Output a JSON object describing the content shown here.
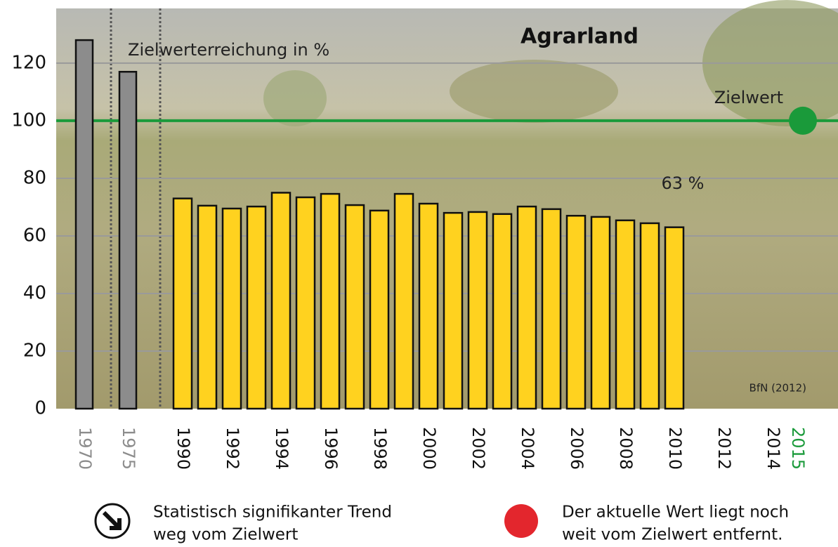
{
  "chart_data": {
    "type": "bar",
    "title": "Agrarland",
    "subtitle": "Zielwerterreichung in %",
    "categories": [
      "1970",
      "1975",
      "1990",
      null,
      "1992",
      null,
      "1994",
      null,
      "1996",
      null,
      "1998",
      null,
      "2000",
      null,
      "2002",
      null,
      "2004",
      null,
      "2006",
      null,
      "2008",
      null,
      "2010",
      null,
      "2012",
      null,
      "2014",
      "2015"
    ],
    "values": [
      128,
      117,
      73,
      70.5,
      69.5,
      70.2,
      75,
      73.4,
      74.6,
      70.7,
      68.8,
      74.6,
      71.2,
      68,
      68.3,
      67.6,
      70.2,
      69.3,
      67,
      66.6,
      65.4,
      64.4,
      63,
      null,
      null,
      null,
      null,
      null
    ],
    "bar_colors": [
      "#8c8c8c",
      "#8c8c8c",
      "#ffd21f",
      "#ffd21f",
      "#ffd21f",
      "#ffd21f",
      "#ffd21f",
      "#ffd21f",
      "#ffd21f",
      "#ffd21f",
      "#ffd21f",
      "#ffd21f",
      "#ffd21f",
      "#ffd21f",
      "#ffd21f",
      "#ffd21f",
      "#ffd21f",
      "#ffd21f",
      "#ffd21f",
      "#ffd21f",
      "#ffd21f",
      "#ffd21f",
      "#ffd21f",
      null,
      null,
      null,
      null,
      null
    ],
    "label_colors": [
      "#8c8c8c",
      "#8c8c8c",
      "#111111",
      null,
      "#111111",
      null,
      "#111111",
      null,
      "#111111",
      null,
      "#111111",
      null,
      "#111111",
      null,
      "#111111",
      null,
      "#111111",
      null,
      "#111111",
      null,
      "#111111",
      null,
      "#111111",
      null,
      "#111111",
      null,
      "#111111",
      "#1a9a3a"
    ],
    "ylim": [
      0,
      139
    ],
    "yticks": [
      0,
      20,
      40,
      60,
      80,
      100,
      120
    ],
    "grid": true,
    "current_label": "63 %",
    "target": {
      "value": 100,
      "label": "Zielwert",
      "color": "#1a9a3a"
    },
    "source": "BfN (2012)",
    "notes": [
      {
        "lines": [
          "Statistisch signifikanter Trend",
          "weg vom Zielwert"
        ],
        "color": "#111111"
      },
      {
        "lines": [
          "Der aktuelle Wert liegt noch",
          "weit vom Zielwert entfernt."
        ],
        "color": "#e3262d"
      }
    ]
  }
}
